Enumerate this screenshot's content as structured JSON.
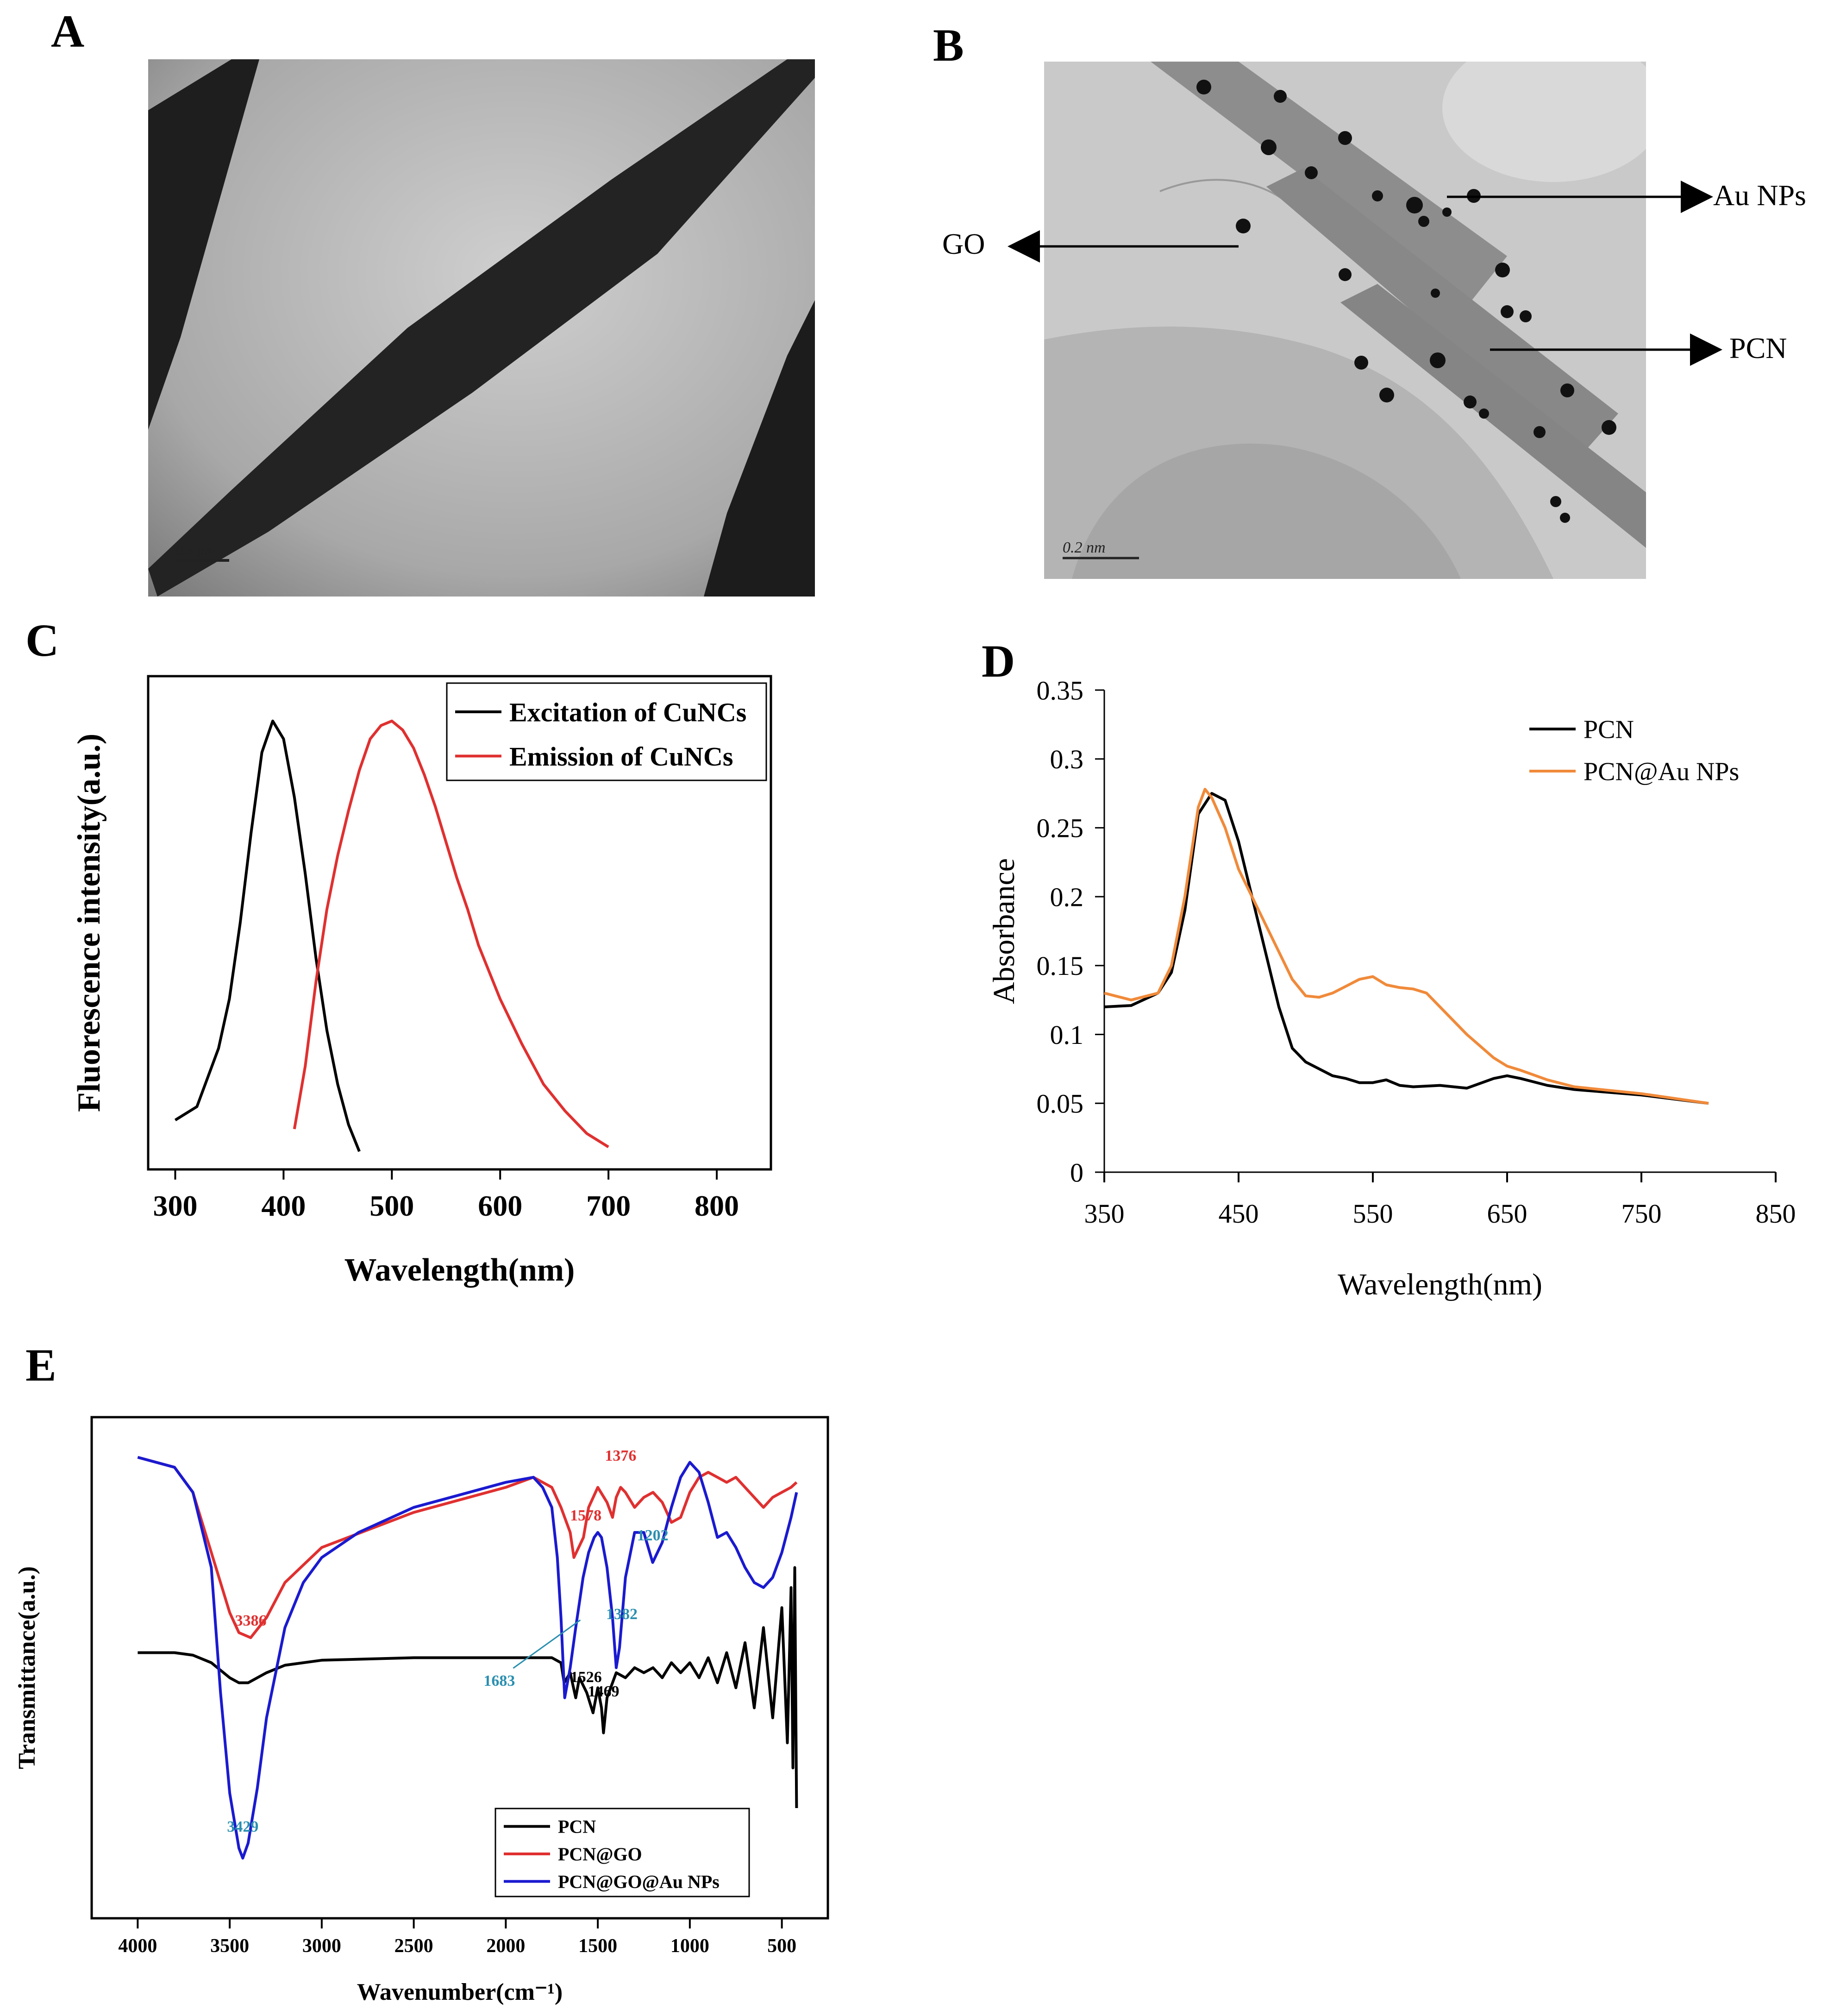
{
  "panels": {
    "A": {
      "letter": "A",
      "scale_bar": "0.5 µm"
    },
    "B": {
      "letter": "B",
      "scale_bar": "0.2 nm",
      "labels": {
        "au": "Au NPs",
        "go": "GO",
        "pcn": "PCN"
      }
    },
    "C": {
      "letter": "C"
    },
    "D": {
      "letter": "D"
    },
    "E": {
      "letter": "E"
    }
  },
  "colors": {
    "black": "#000000",
    "red": "#e03030",
    "orange": "#f08a3a",
    "blue": "#1a1ad0",
    "annotation_blue": "#2a8fb0",
    "annotation_red": "#e03030"
  },
  "chart_data": [
    {
      "id": "C",
      "type": "line",
      "title": "",
      "xlabel": "Wavelength(nm)",
      "ylabel": "Fluorescence intensity(a.u.)",
      "xlim": [
        275,
        850
      ],
      "ylim": [
        0,
        1.1
      ],
      "xticks": [
        300,
        400,
        500,
        600,
        700,
        800
      ],
      "yticks": [],
      "legend_position": "top-right",
      "grid": false,
      "series": [
        {
          "name": "Excitation of CuNCs",
          "color": "#000000",
          "x": [
            300,
            320,
            340,
            350,
            360,
            370,
            380,
            390,
            400,
            410,
            420,
            430,
            440,
            450,
            460,
            470
          ],
          "y": [
            0.11,
            0.14,
            0.27,
            0.38,
            0.55,
            0.75,
            0.93,
            1.0,
            0.96,
            0.83,
            0.66,
            0.47,
            0.31,
            0.19,
            0.1,
            0.04
          ]
        },
        {
          "name": "Emission of CuNCs",
          "color": "#e03030",
          "x": [
            410,
            420,
            430,
            440,
            450,
            460,
            470,
            480,
            490,
            500,
            510,
            520,
            530,
            540,
            550,
            560,
            570,
            580,
            600,
            620,
            640,
            660,
            680,
            700
          ],
          "y": [
            0.09,
            0.23,
            0.42,
            0.58,
            0.7,
            0.8,
            0.89,
            0.96,
            0.99,
            1.0,
            0.98,
            0.94,
            0.88,
            0.81,
            0.73,
            0.65,
            0.58,
            0.5,
            0.38,
            0.28,
            0.19,
            0.13,
            0.08,
            0.05
          ]
        }
      ]
    },
    {
      "id": "D",
      "type": "line",
      "title": "",
      "xlabel": "Wavelength(nm)",
      "ylabel": "Absorbance",
      "xlim": [
        350,
        850
      ],
      "ylim": [
        0,
        0.35
      ],
      "xticks": [
        350,
        450,
        550,
        650,
        750,
        850
      ],
      "yticks": [
        0,
        0.05,
        0.1,
        0.15,
        0.2,
        0.25,
        0.3,
        0.35
      ],
      "legend_position": "top-right",
      "grid": false,
      "series": [
        {
          "name": "PCN",
          "color": "#000000",
          "x": [
            350,
            370,
            390,
            400,
            410,
            420,
            430,
            440,
            450,
            460,
            470,
            480,
            490,
            500,
            510,
            520,
            530,
            540,
            550,
            560,
            570,
            580,
            600,
            620,
            640,
            650,
            660,
            680,
            700,
            750,
            800
          ],
          "y": [
            0.12,
            0.121,
            0.13,
            0.145,
            0.19,
            0.26,
            0.275,
            0.27,
            0.24,
            0.2,
            0.16,
            0.12,
            0.09,
            0.08,
            0.075,
            0.07,
            0.068,
            0.065,
            0.065,
            0.067,
            0.063,
            0.062,
            0.063,
            0.061,
            0.068,
            0.07,
            0.068,
            0.063,
            0.06,
            0.056,
            0.05
          ]
        },
        {
          "name": "PCN@Au NPs",
          "color": "#f08a3a",
          "x": [
            350,
            370,
            390,
            400,
            410,
            420,
            425,
            430,
            440,
            450,
            460,
            470,
            480,
            490,
            500,
            510,
            520,
            530,
            540,
            550,
            560,
            570,
            580,
            590,
            600,
            620,
            640,
            650,
            660,
            680,
            700,
            750,
            800
          ],
          "y": [
            0.13,
            0.125,
            0.13,
            0.15,
            0.2,
            0.265,
            0.278,
            0.272,
            0.25,
            0.22,
            0.2,
            0.18,
            0.16,
            0.14,
            0.128,
            0.127,
            0.13,
            0.135,
            0.14,
            0.142,
            0.136,
            0.134,
            0.133,
            0.13,
            0.12,
            0.1,
            0.083,
            0.077,
            0.074,
            0.067,
            0.062,
            0.057,
            0.05
          ]
        }
      ]
    },
    {
      "id": "E",
      "type": "line",
      "title": "",
      "xlabel": "Wavenumber(cm⁻¹)",
      "ylabel": "Transmittance(a.u.)",
      "xlim": [
        4250,
        250
      ],
      "ylim": [
        0,
        100
      ],
      "xticks": [
        4000,
        3500,
        3000,
        2500,
        2000,
        1500,
        1000,
        500
      ],
      "yticks": [],
      "legend_position": "bottom-right",
      "grid": false,
      "series": [
        {
          "name": "PCN",
          "color": "#000000",
          "x": [
            4000,
            3800,
            3700,
            3600,
            3500,
            3450,
            3400,
            3300,
            3200,
            3000,
            2500,
            2000,
            1750,
            1700,
            1683,
            1650,
            1620,
            1600,
            1560,
            1526,
            1500,
            1480,
            1469,
            1450,
            1420,
            1400,
            1350,
            1300,
            1250,
            1200,
            1150,
            1100,
            1050,
            1000,
            950,
            900,
            850,
            800,
            750,
            700,
            650,
            600,
            550,
            500,
            470,
            450,
            440,
            430,
            420
          ],
          "y": [
            53,
            53,
            52.5,
            51,
            48,
            47,
            47,
            49,
            50.5,
            51.5,
            52,
            52,
            52,
            51,
            47,
            49,
            44,
            48,
            45,
            41,
            46,
            42,
            37,
            44,
            47,
            49,
            48,
            50,
            49,
            50,
            48,
            51,
            49,
            51,
            48,
            52,
            47,
            53,
            46,
            55,
            42,
            58,
            40,
            62,
            35,
            66,
            30,
            70,
            22
          ]
        },
        {
          "name": "PCN@GO",
          "color": "#e03030",
          "x": [
            4000,
            3800,
            3700,
            3600,
            3500,
            3450,
            3386,
            3300,
            3200,
            3000,
            2500,
            2000,
            1850,
            1750,
            1700,
            1650,
            1630,
            1578,
            1550,
            1500,
            1450,
            1420,
            1400,
            1376,
            1350,
            1300,
            1250,
            1200,
            1150,
            1100,
            1050,
            1000,
            950,
            900,
            850,
            800,
            750,
            700,
            650,
            600,
            550,
            500,
            450,
            420
          ],
          "y": [
            92,
            90,
            85,
            73,
            61,
            57,
            56,
            60,
            67,
            74,
            81,
            86,
            88,
            86,
            82,
            77,
            72,
            76,
            82,
            86,
            83,
            80,
            84,
            86,
            85,
            82,
            84,
            85,
            83,
            79,
            80,
            85,
            88,
            89,
            88,
            87,
            88,
            86,
            84,
            82,
            84,
            85,
            86,
            87
          ]
        },
        {
          "name": "PCN@GO@Au NPs",
          "color": "#1a1ad0",
          "x": [
            4000,
            3800,
            3700,
            3600,
            3550,
            3500,
            3450,
            3429,
            3400,
            3350,
            3300,
            3200,
            3100,
            3000,
            2800,
            2500,
            2000,
            1850,
            1800,
            1750,
            1720,
            1700,
            1680,
            1650,
            1620,
            1600,
            1580,
            1550,
            1520,
            1500,
            1480,
            1450,
            1420,
            1400,
            1382,
            1350,
            1300,
            1250,
            1202,
            1150,
            1100,
            1050,
            1000,
            950,
            900,
            850,
            800,
            750,
            700,
            650,
            600,
            550,
            500,
            450,
            420
          ],
          "y": [
            92,
            90,
            85,
            70,
            45,
            25,
            14,
            12,
            15,
            26,
            40,
            58,
            67,
            72,
            77,
            82,
            87,
            88,
            86,
            82,
            72,
            60,
            44,
            50,
            58,
            63,
            68,
            73,
            76,
            77,
            76,
            70,
            60,
            50,
            54,
            68,
            77,
            77,
            71,
            75,
            82,
            88,
            91,
            89,
            83,
            76,
            77,
            74,
            70,
            67,
            66,
            68,
            73,
            80,
            85
          ]
        }
      ],
      "annotations": [
        {
          "text": "3386",
          "x": 3386,
          "color": "#e03030"
        },
        {
          "text": "1376",
          "x": 1376,
          "color": "#e03030"
        },
        {
          "text": "1578",
          "x": 1578,
          "color": "#e03030"
        },
        {
          "text": "1202",
          "x": 1202,
          "color": "#2a8fb0"
        },
        {
          "text": "1382",
          "x": 1382,
          "color": "#2a8fb0"
        },
        {
          "text": "1683",
          "x": 1683,
          "color": "#2a8fb0"
        },
        {
          "text": "1526",
          "x": 1526,
          "color": "#000000"
        },
        {
          "text": "1469",
          "x": 1469,
          "color": "#000000"
        },
        {
          "text": "3429",
          "x": 3429,
          "color": "#2a8fb0"
        }
      ]
    }
  ]
}
